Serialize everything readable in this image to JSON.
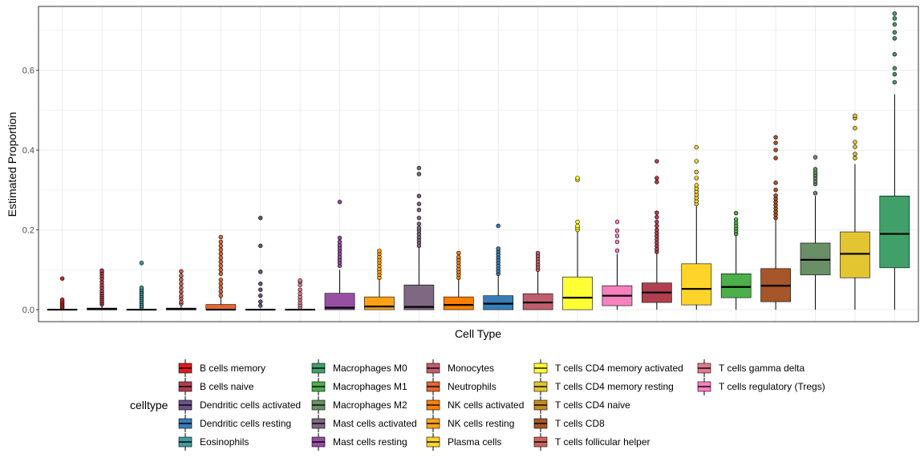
{
  "chart_data": {
    "type": "boxplot",
    "title": "",
    "xlabel": "Cell Type",
    "ylabel": "Estimated Proportion",
    "ylim": [
      -0.03,
      0.76
    ],
    "yticks": [
      0.0,
      0.2,
      0.4,
      0.6
    ],
    "ytick_labels": [
      "0.0",
      "0.2",
      "0.4",
      "0.6"
    ],
    "grid": true,
    "legend_title": "celltype",
    "legend_position": "bottom",
    "legend_columns": [
      [
        "B cells memory",
        "B cells naive",
        "Dendritic cells activated",
        "Dendritic cells resting",
        "Eosinophils"
      ],
      [
        "Macrophages M0",
        "Macrophages M1",
        "Macrophages M2",
        "Mast cells activated",
        "Mast cells resting"
      ],
      [
        "Monocytes",
        "Neutrophils",
        "NK cells activated",
        "NK cells resting",
        "Plasma cells"
      ],
      [
        "T cells CD4 memory activated",
        "T cells CD4 memory resting",
        "T cells CD4 naive",
        "T cells CD8",
        "T cells follicular helper"
      ],
      [
        "T cells gamma delta",
        "T cells regulatory (Tregs)"
      ]
    ],
    "colors": {
      "B cells memory": "#E41A1C",
      "B cells naive": "#B03F4F",
      "Dendritic cells activated": "#6A5388",
      "Dendritic cells resting": "#377EB8",
      "Eosinophils": "#3F9B9F",
      "Macrophages M0": "#41A06A",
      "Macrophages M1": "#4DAF4A",
      "Macrophages M2": "#698F67",
      "Mast cells activated": "#7E6882",
      "Mast cells resting": "#984EA3",
      "Monocytes": "#C15E6E",
      "Neutrophils": "#E4672F",
      "NK cells activated": "#FF7F00",
      "NK cells resting": "#FFA21A",
      "Plasma cells": "#FFD42A",
      "T cells CD4 memory activated": "#FFFF33",
      "T cells CD4 memory resting": "#E2C531",
      "T cells CD4 naive": "#C38A26",
      "T cells CD8": "#A65628",
      "T cells follicular helper": "#C9665C",
      "T cells gamma delta": "#E07A8C",
      "T cells regulatory (Tregs)": "#F781BF"
    },
    "boxes": [
      {
        "name": "B cells memory",
        "q1": 0.0,
        "median": 0.0,
        "q3": 0.001,
        "lower": 0.0,
        "upper": 0.002,
        "outliers": [
          0.005,
          0.008,
          0.012,
          0.016,
          0.02,
          0.025,
          0.078
        ]
      },
      {
        "name": "B cells naive",
        "q1": 0.0,
        "median": 0.001,
        "q3": 0.004,
        "lower": 0.0,
        "upper": 0.01,
        "outliers": [
          0.013,
          0.018,
          0.022,
          0.027,
          0.032,
          0.037,
          0.042,
          0.048,
          0.055,
          0.062,
          0.07,
          0.078,
          0.085,
          0.092,
          0.098
        ]
      },
      {
        "name": "Eosinophils",
        "q1": 0.0,
        "median": 0.0,
        "q3": 0.001,
        "lower": 0.0,
        "upper": 0.003,
        "outliers": [
          0.006,
          0.01,
          0.015,
          0.02,
          0.025,
          0.03,
          0.035,
          0.04,
          0.045,
          0.05,
          0.055,
          0.117
        ]
      },
      {
        "name": "T cells follicular helper",
        "q1": 0.0,
        "median": 0.001,
        "q3": 0.004,
        "lower": 0.0,
        "upper": 0.01,
        "outliers": [
          0.015,
          0.02,
          0.028,
          0.035,
          0.045,
          0.055,
          0.065,
          0.075,
          0.085,
          0.096
        ]
      },
      {
        "name": "Neutrophils",
        "q1": 0.0,
        "median": 0.0,
        "q3": 0.013,
        "lower": 0.0,
        "upper": 0.03,
        "outliers": [
          0.035,
          0.045,
          0.055,
          0.065,
          0.075,
          0.09,
          0.1,
          0.11,
          0.12,
          0.13,
          0.14,
          0.15,
          0.16,
          0.17,
          0.182
        ]
      },
      {
        "name": "Dendritic cells activated",
        "q1": 0.0,
        "median": 0.0,
        "q3": 0.001,
        "lower": 0.0,
        "upper": 0.003,
        "outliers": [
          0.01,
          0.02,
          0.035,
          0.05,
          0.065,
          0.095,
          0.16,
          0.23
        ]
      },
      {
        "name": "T cells gamma delta",
        "q1": 0.0,
        "median": 0.0,
        "q3": 0.001,
        "lower": 0.0,
        "upper": 0.003,
        "outliers": [
          0.006,
          0.012,
          0.018,
          0.025,
          0.032,
          0.04,
          0.05,
          0.062,
          0.07,
          0.073
        ]
      },
      {
        "name": "Mast cells resting",
        "q1": 0.0,
        "median": 0.005,
        "q3": 0.041,
        "lower": 0.0,
        "upper": 0.1,
        "outliers": [
          0.11,
          0.118,
          0.125,
          0.132,
          0.14,
          0.148,
          0.155,
          0.162,
          0.17,
          0.18,
          0.27
        ]
      },
      {
        "name": "NK cells resting",
        "q1": 0.0,
        "median": 0.008,
        "q3": 0.032,
        "lower": 0.0,
        "upper": 0.075,
        "outliers": [
          0.08,
          0.088,
          0.095,
          0.102,
          0.11,
          0.118,
          0.125,
          0.132,
          0.14,
          0.147
        ]
      },
      {
        "name": "Mast cells activated",
        "q1": 0.0,
        "median": 0.007,
        "q3": 0.062,
        "lower": 0.0,
        "upper": 0.155,
        "outliers": [
          0.16,
          0.168,
          0.175,
          0.182,
          0.19,
          0.198,
          0.205,
          0.215,
          0.23,
          0.25,
          0.265,
          0.285,
          0.34,
          0.355
        ]
      },
      {
        "name": "NK cells activated",
        "q1": 0.0,
        "median": 0.012,
        "q3": 0.032,
        "lower": 0.0,
        "upper": 0.075,
        "outliers": [
          0.08,
          0.088,
          0.095,
          0.102,
          0.11,
          0.118,
          0.125,
          0.132,
          0.142
        ]
      },
      {
        "name": "Dendritic cells resting",
        "q1": 0.0,
        "median": 0.015,
        "q3": 0.035,
        "lower": 0.0,
        "upper": 0.085,
        "outliers": [
          0.09,
          0.097,
          0.104,
          0.111,
          0.118,
          0.125,
          0.132,
          0.139,
          0.146,
          0.153,
          0.21
        ]
      },
      {
        "name": "Monocytes",
        "q1": 0.0,
        "median": 0.018,
        "q3": 0.04,
        "lower": 0.0,
        "upper": 0.095,
        "outliers": [
          0.1,
          0.107,
          0.114,
          0.121,
          0.128,
          0.135,
          0.142
        ]
      },
      {
        "name": "T cells CD4 memory activated",
        "q1": 0.0,
        "median": 0.03,
        "q3": 0.082,
        "lower": 0.0,
        "upper": 0.195,
        "outliers": [
          0.2,
          0.205,
          0.21,
          0.22,
          0.325,
          0.33
        ]
      },
      {
        "name": "T cells regulatory (Tregs)",
        "q1": 0.01,
        "median": 0.035,
        "q3": 0.06,
        "lower": 0.0,
        "upper": 0.14,
        "outliers": [
          0.148,
          0.17,
          0.185,
          0.198,
          0.22
        ]
      },
      {
        "name": "B cells naive",
        "q1": 0.018,
        "median": 0.043,
        "q3": 0.067,
        "lower": 0.0,
        "upper": 0.14,
        "outliers": [
          0.145,
          0.152,
          0.16,
          0.168,
          0.176,
          0.184,
          0.192,
          0.2,
          0.21,
          0.22,
          0.232,
          0.243,
          0.32,
          0.33,
          0.372
        ]
      },
      {
        "name": "Plasma cells",
        "q1": 0.012,
        "median": 0.052,
        "q3": 0.115,
        "lower": 0.0,
        "upper": 0.26,
        "outliers": [
          0.265,
          0.272,
          0.28,
          0.288,
          0.296,
          0.304,
          0.312,
          0.33,
          0.345,
          0.372,
          0.407
        ]
      },
      {
        "name": "Macrophages M1",
        "q1": 0.03,
        "median": 0.057,
        "q3": 0.09,
        "lower": 0.0,
        "upper": 0.185,
        "outliers": [
          0.19,
          0.197,
          0.204,
          0.211,
          0.218,
          0.226,
          0.242
        ]
      },
      {
        "name": "T cells CD8",
        "q1": 0.02,
        "median": 0.06,
        "q3": 0.103,
        "lower": 0.0,
        "upper": 0.225,
        "outliers": [
          0.23,
          0.238,
          0.246,
          0.254,
          0.262,
          0.27,
          0.278,
          0.286,
          0.3,
          0.318,
          0.38,
          0.4,
          0.418,
          0.432
        ]
      },
      {
        "name": "Macrophages M2",
        "q1": 0.087,
        "median": 0.125,
        "q3": 0.167,
        "lower": 0.0,
        "upper": 0.285,
        "outliers": [
          0.292,
          0.315,
          0.322,
          0.33,
          0.337,
          0.344,
          0.352,
          0.382
        ]
      },
      {
        "name": "T cells CD4 memory resting",
        "q1": 0.08,
        "median": 0.14,
        "q3": 0.195,
        "lower": 0.0,
        "upper": 0.365,
        "outliers": [
          0.38,
          0.39,
          0.408,
          0.42,
          0.455,
          0.48,
          0.486
        ]
      },
      {
        "name": "Macrophages M0",
        "q1": 0.105,
        "median": 0.19,
        "q3": 0.285,
        "lower": 0.0,
        "upper": 0.54,
        "outliers": [
          0.57,
          0.59,
          0.605,
          0.64,
          0.68,
          0.695,
          0.715,
          0.73,
          0.742
        ]
      }
    ]
  }
}
